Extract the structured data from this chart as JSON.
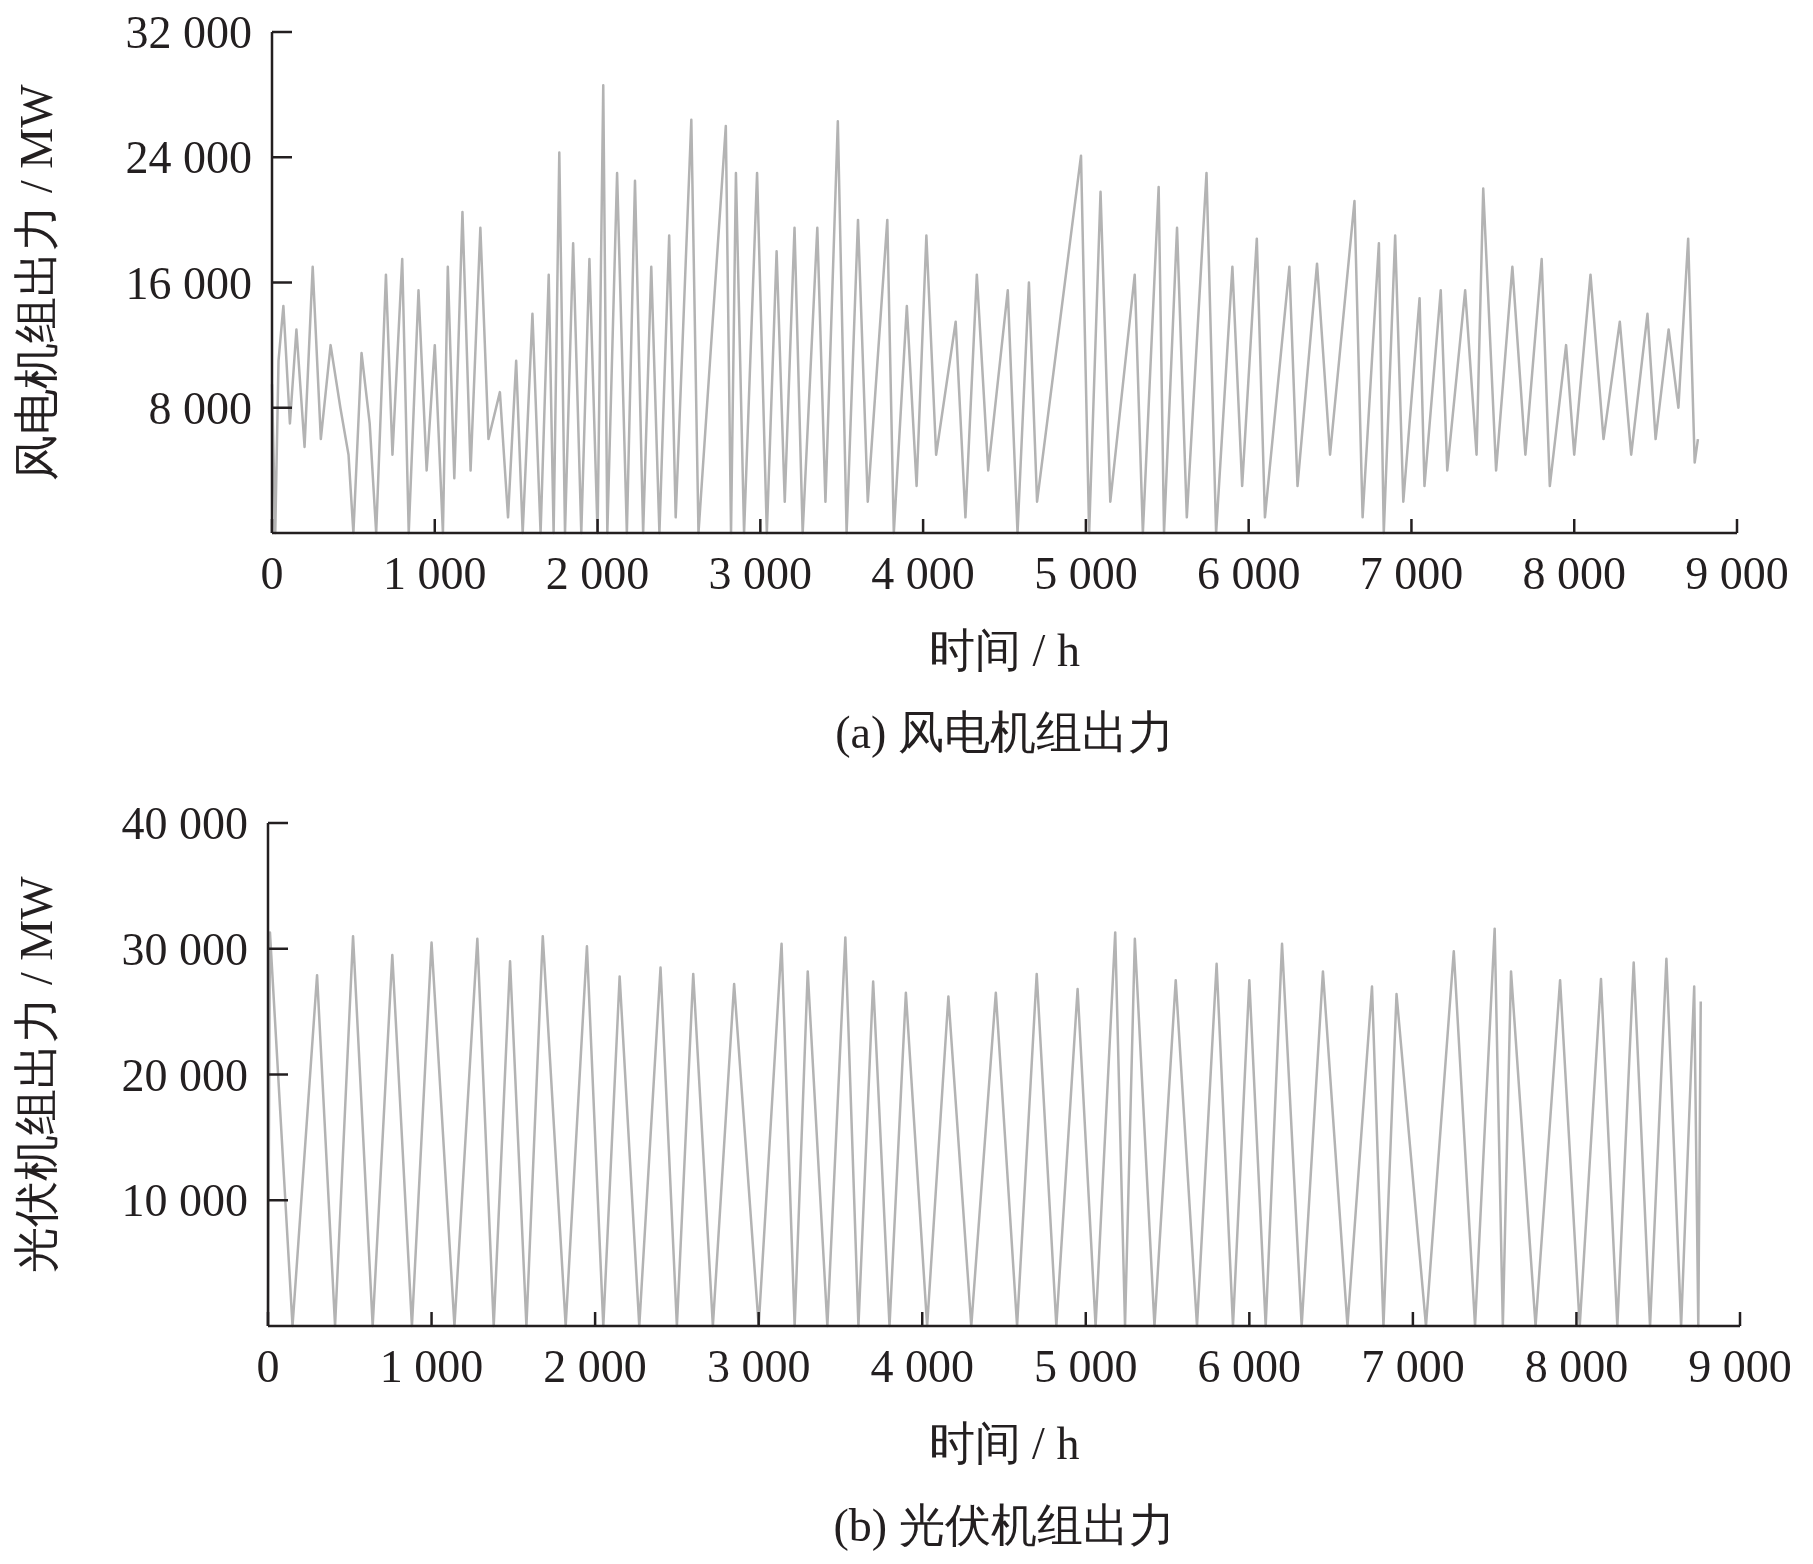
{
  "chart_data": [
    {
      "type": "line",
      "title": "(a) 风电机组出力",
      "xlabel": "时间 / h",
      "ylabel": "风电机组出力 / MW",
      "color": "#b3b3b3",
      "xlim": [
        0,
        9000
      ],
      "ylim": [
        0,
        32000
      ],
      "xticks": [
        0,
        {
          "value": 1000,
          "label": "1 000"
        },
        {
          "value": 2000,
          "label": "2 000"
        },
        {
          "value": 3000,
          "label": "3 000"
        },
        {
          "value": 4000,
          "label": "4 000"
        },
        {
          "value": 5000,
          "label": "5 000"
        },
        {
          "value": 6000,
          "label": "6 000"
        },
        {
          "value": 7000,
          "label": "7 000"
        },
        {
          "value": 8000,
          "label": "8 000"
        },
        {
          "value": 9000,
          "label": "9 000"
        }
      ],
      "yticks": [
        {
          "value": 8000,
          "label": "8 000"
        },
        {
          "value": 16000,
          "label": "16 000"
        },
        {
          "value": 24000,
          "label": "24 000"
        },
        {
          "value": 32000,
          "label": "32 000"
        }
      ],
      "x": [
        0,
        20,
        40,
        70,
        110,
        150,
        200,
        250,
        300,
        360,
        420,
        470,
        500,
        550,
        600,
        640,
        700,
        740,
        800,
        840,
        900,
        950,
        1000,
        1050,
        1080,
        1120,
        1170,
        1220,
        1280,
        1330,
        1400,
        1450,
        1500,
        1540,
        1600,
        1650,
        1700,
        1730,
        1765,
        1800,
        1850,
        1900,
        1950,
        2000,
        2035,
        2060,
        2120,
        2180,
        2230,
        2280,
        2330,
        2380,
        2440,
        2480,
        2576,
        2620,
        2788,
        2820,
        2850,
        2900,
        2980,
        3040,
        3100,
        3150,
        3210,
        3260,
        3350,
        3400,
        3476,
        3530,
        3600,
        3660,
        3780,
        3820,
        3900,
        3960,
        4020,
        4080,
        4200,
        4260,
        4330,
        4400,
        4520,
        4580,
        4650,
        4700,
        4970,
        5020,
        5090,
        5150,
        5300,
        5350,
        5447,
        5480,
        5560,
        5620,
        5741,
        5800,
        5900,
        5960,
        6050,
        6100,
        6250,
        6300,
        6420,
        6500,
        6650,
        6700,
        6800,
        6830,
        6900,
        6950,
        7050,
        7080,
        7180,
        7220,
        7330,
        7400,
        7441,
        7520,
        7620,
        7700,
        7800,
        7850,
        7950,
        8000,
        8100,
        8180,
        8280,
        8350,
        8450,
        8500,
        8580,
        8640,
        8700,
        8740,
        8760
      ],
      "values": [
        9500,
        0,
        11000,
        14500,
        7000,
        13000,
        5500,
        17000,
        6000,
        12000,
        8000,
        5000,
        0,
        11500,
        7000,
        0,
        16500,
        5000,
        17500,
        0,
        15500,
        4000,
        12000,
        0,
        17000,
        3500,
        20500,
        4000,
        19500,
        6000,
        9000,
        1000,
        11000,
        0,
        14000,
        0,
        16500,
        0,
        24300,
        0,
        18500,
        0,
        17500,
        0,
        28600,
        0,
        23000,
        0,
        22500,
        0,
        17000,
        0,
        19000,
        1000,
        26400,
        0,
        26000,
        0,
        23000,
        0,
        23000,
        0,
        18000,
        2000,
        19500,
        0,
        19500,
        2000,
        26300,
        0,
        20000,
        2000,
        20000,
        0,
        14500,
        3000,
        19000,
        5000,
        13500,
        1000,
        16500,
        4000,
        15500,
        0,
        16000,
        2000,
        24100,
        0,
        21800,
        2000,
        16500,
        0,
        22100,
        0,
        19500,
        1000,
        23000,
        0,
        17000,
        3000,
        18800,
        1000,
        17000,
        3000,
        17200,
        5000,
        21200,
        1000,
        18500,
        0,
        19000,
        2000,
        15000,
        3000,
        15500,
        4000,
        15500,
        5000,
        22000,
        4000,
        17000,
        5000,
        17500,
        3000,
        12000,
        5000,
        16500,
        6000,
        13500,
        5000,
        14000,
        6000,
        13000,
        8000,
        18800,
        4500,
        6000
      ]
    },
    {
      "type": "line",
      "title": "(b) 光伏机组出力",
      "xlabel": "时间 / h",
      "ylabel": "光伏机组出力 / MW",
      "color": "#b3b3b3",
      "xlim": [
        0,
        9000
      ],
      "ylim": [
        0,
        40000
      ],
      "xticks": [
        0,
        {
          "value": 1000,
          "label": "1 000"
        },
        {
          "value": 2000,
          "label": "2 000"
        },
        {
          "value": 3000,
          "label": "3 000"
        },
        {
          "value": 4000,
          "label": "4 000"
        },
        {
          "value": 5000,
          "label": "5 000"
        },
        {
          "value": 6000,
          "label": "6 000"
        },
        {
          "value": 7000,
          "label": "7 000"
        },
        {
          "value": 8000,
          "label": "8 000"
        },
        {
          "value": 9000,
          "label": "9 000"
        }
      ],
      "yticks": [
        {
          "value": 10000,
          "label": "10 000"
        },
        {
          "value": 20000,
          "label": "20 000"
        },
        {
          "value": 30000,
          "label": "30 000"
        },
        {
          "value": 40000,
          "label": "40 000"
        }
      ],
      "x": [
        0,
        12,
        150,
        300,
        410,
        520,
        640,
        760,
        880,
        1000,
        1140,
        1280,
        1380,
        1480,
        1580,
        1680,
        1820,
        1950,
        2050,
        2150,
        2270,
        2400,
        2500,
        2600,
        2720,
        2850,
        3000,
        3140,
        3220,
        3300,
        3420,
        3530,
        3610,
        3700,
        3800,
        3900,
        4030,
        4160,
        4300,
        4450,
        4580,
        4700,
        4820,
        4950,
        5060,
        5180,
        5240,
        5300,
        5420,
        5550,
        5680,
        5800,
        5900,
        6000,
        6100,
        6200,
        6320,
        6450,
        6600,
        6750,
        6820,
        6900,
        7080,
        7250,
        7380,
        7500,
        7550,
        7600,
        7750,
        7900,
        8020,
        8150,
        8250,
        8350,
        8450,
        8550,
        8640,
        8720,
        8745,
        8760
      ],
      "values": [
        0,
        31300,
        0,
        27900,
        0,
        31000,
        0,
        29500,
        0,
        30500,
        0,
        30800,
        0,
        29000,
        0,
        31000,
        0,
        30200,
        0,
        27800,
        0,
        28500,
        0,
        28000,
        0,
        27200,
        0,
        30400,
        0,
        28200,
        0,
        30900,
        0,
        27400,
        0,
        26500,
        0,
        26200,
        0,
        26500,
        0,
        28000,
        0,
        26800,
        0,
        31300,
        0,
        30800,
        0,
        27500,
        0,
        28800,
        0,
        27500,
        0,
        30400,
        0,
        28200,
        0,
        27000,
        0,
        26400,
        0,
        29800,
        0,
        31600,
        0,
        28200,
        0,
        27500,
        0,
        27600,
        0,
        28900,
        0,
        29200,
        0,
        27000,
        0,
        25800
      ]
    }
  ]
}
